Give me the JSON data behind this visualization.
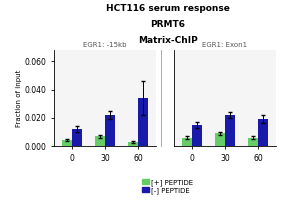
{
  "title_line1": "HCT116 serum response",
  "title_line2": "PRMT6",
  "title_line3": "Matrix-ChIP",
  "ylabel": "Fraction of Input",
  "ylim": [
    0,
    0.068
  ],
  "yticks": [
    0.0,
    0.02,
    0.04,
    0.06
  ],
  "ytick_labels": [
    "0.000",
    "0.020",
    "0.040",
    "0.060"
  ],
  "xtick_labels": [
    "0",
    "30",
    "60"
  ],
  "panel1_label": "EGR1: -15kb",
  "panel2_label": "EGR1: Exon1",
  "color_plus": "#66cc66",
  "color_minus": "#1a1aaa",
  "legend_plus": "[+] PEPTIDE",
  "legend_minus": "[-] PEPTIDE",
  "panel1": {
    "plus_values": [
      0.004,
      0.007,
      0.003
    ],
    "minus_values": [
      0.012,
      0.022,
      0.034
    ],
    "plus_errors": [
      0.0008,
      0.001,
      0.0008
    ],
    "minus_errors": [
      0.002,
      0.003,
      0.012
    ]
  },
  "panel2": {
    "plus_values": [
      0.006,
      0.009,
      0.006
    ],
    "minus_values": [
      0.015,
      0.022,
      0.019
    ],
    "plus_errors": [
      0.001,
      0.001,
      0.001
    ],
    "minus_errors": [
      0.002,
      0.002,
      0.003
    ]
  },
  "bg_color": "#f0f0f0",
  "title_fontsize": 6.5,
  "panel_label_fontsize": 5.0,
  "tick_fontsize": 5.5,
  "ylabel_fontsize": 5.0,
  "legend_fontsize": 5.0
}
